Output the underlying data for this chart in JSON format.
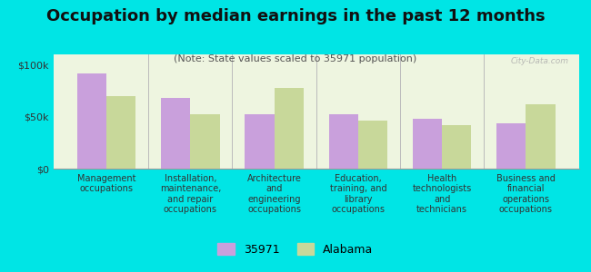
{
  "title": "Occupation by median earnings in the past 12 months",
  "subtitle": "(Note: State values scaled to 35971 population)",
  "categories": [
    "Management\noccupations",
    "Installation,\nmaintenance,\nand repair\noccupations",
    "Architecture\nand\nengineering\noccupations",
    "Education,\ntraining, and\nlibrary\noccupations",
    "Health\ntechnologists\nand\ntechnicians",
    "Business and\nfinancial\noperations\noccupations"
  ],
  "values_35971": [
    92000,
    68000,
    52000,
    52000,
    48000,
    44000
  ],
  "values_alabama": [
    70000,
    52000,
    78000,
    46000,
    42000,
    62000
  ],
  "color_35971": "#c9a0dc",
  "color_alabama": "#c8d89a",
  "background_color": "#00e5e5",
  "plot_bg": "#eef5e0",
  "ylim": [
    0,
    110000
  ],
  "yticks": [
    0,
    50000,
    100000
  ],
  "ytick_labels": [
    "$0",
    "$50k",
    "$100k"
  ],
  "legend_35971": "35971",
  "legend_alabama": "Alabama",
  "watermark": "City-Data.com",
  "title_fontsize": 13,
  "subtitle_fontsize": 8,
  "tick_label_fontsize": 7,
  "ytick_fontsize": 8
}
